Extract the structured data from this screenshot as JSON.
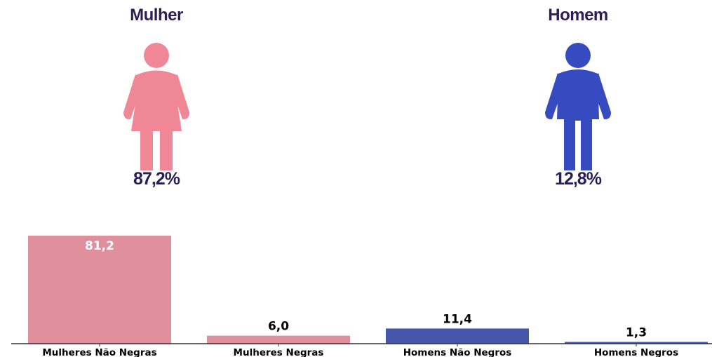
{
  "summary": {
    "female": {
      "label": "Mulher",
      "percent": "87,2%",
      "color": "#f08796",
      "icon": "woman-icon"
    },
    "male": {
      "label": "Homem",
      "percent": "12,8%",
      "color": "#354bbf",
      "icon": "man-icon"
    }
  },
  "chart_data": {
    "type": "bar",
    "categories": [
      "Mulheres Não Negras",
      "Mulheres Negras",
      "Homens Não Negros",
      "Homens Negros"
    ],
    "values": [
      81.2,
      6.0,
      11.4,
      1.3
    ],
    "value_labels": [
      "81,2",
      "6,0",
      "11,4",
      "1,3"
    ],
    "colors": [
      "#e0909c",
      "#e0909c",
      "#4656aa",
      "#4656aa"
    ],
    "title": "",
    "xlabel": "",
    "ylabel": "",
    "ylim": [
      0,
      81.2
    ],
    "grid": false,
    "legend": "none"
  }
}
